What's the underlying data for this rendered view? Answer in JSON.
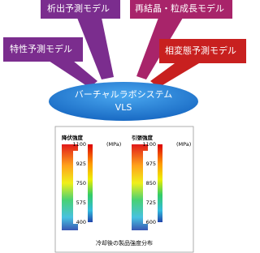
{
  "models": {
    "characteristic": "特性予測モデル",
    "precipitation": "析出予測モデル",
    "recrystallization": "再結晶・粒成長モデル",
    "transformation": "相変態予測モデル"
  },
  "system": {
    "name": "バーチャルラボシステム",
    "abbr": "VLS"
  },
  "figure": {
    "panels": [
      {
        "title": "降伏強度",
        "unit": "(MPa)",
        "scale": [
          "1100",
          "925",
          "750",
          "575",
          "400"
        ]
      },
      {
        "title": "引張強度",
        "unit": "(MPa)",
        "scale": [
          "1100",
          "975",
          "850",
          "725",
          "600"
        ]
      }
    ],
    "caption": "冷却後の製品強度分布"
  }
}
